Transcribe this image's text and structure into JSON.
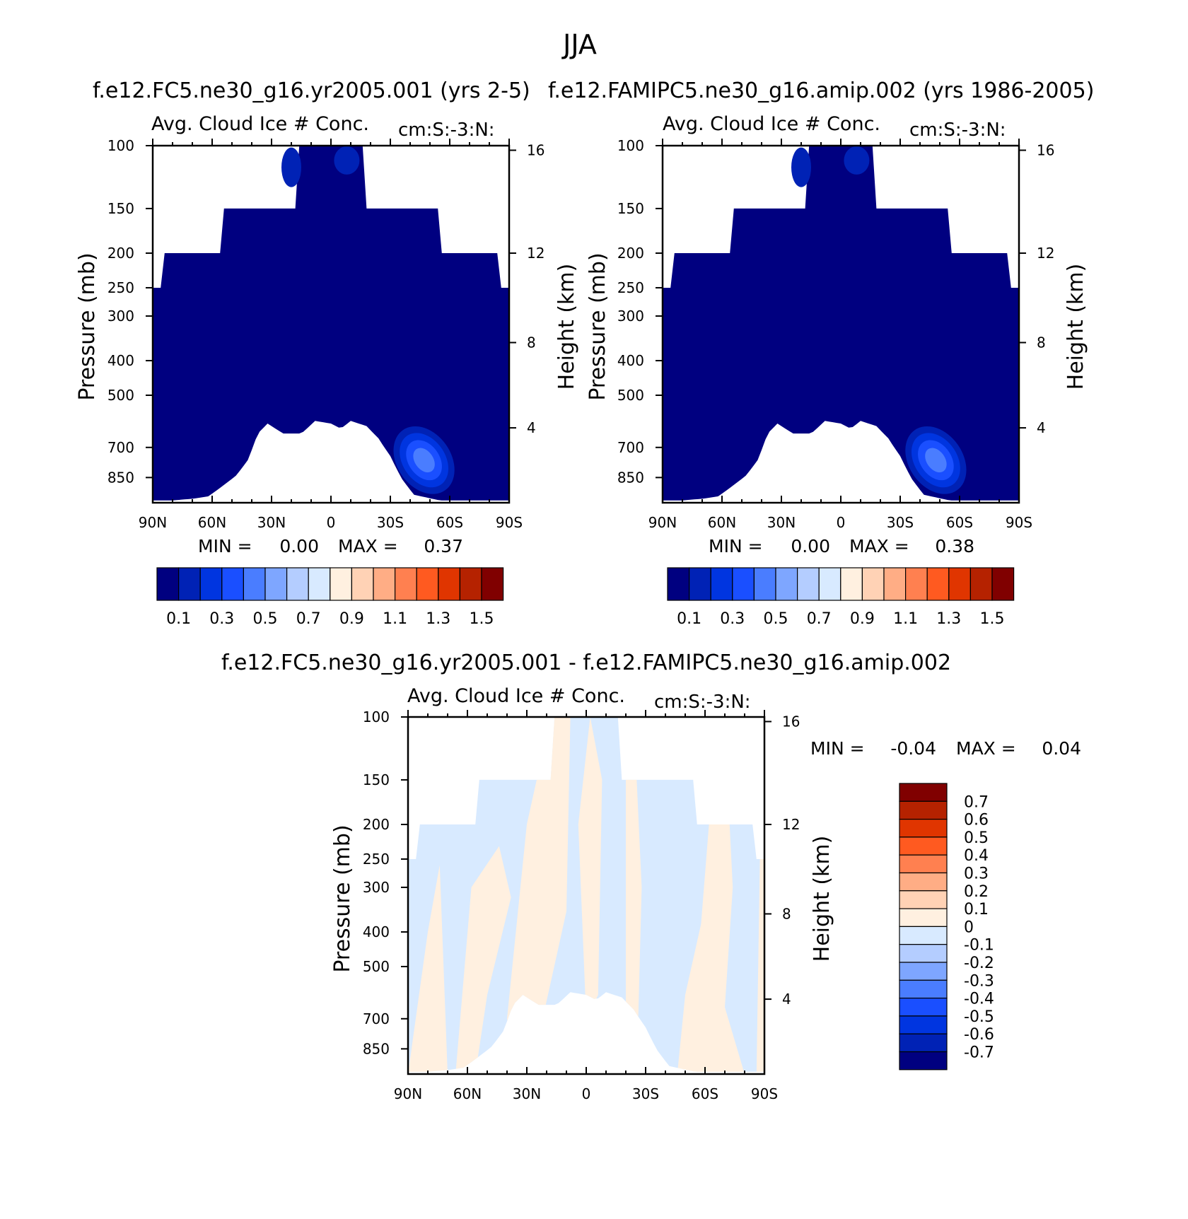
{
  "colors": {
    "ctrl_levels": [
      "#000080",
      "#0022b5",
      "#0035e0",
      "#1a4fff",
      "#4a7dff",
      "#7ea6ff",
      "#b4cdff",
      "#d8eaff",
      "#fff0e0",
      "#ffd2b5",
      "#ffad85",
      "#ff8050",
      "#ff5a20",
      "#e03500",
      "#b52200",
      "#800000"
    ],
    "diff_levels": [
      "#000080",
      "#0022b5",
      "#0035e0",
      "#1a4fff",
      "#4a7dff",
      "#7ea6ff",
      "#b4cdff",
      "#d8eaff",
      "#fff0e0",
      "#ffd2b5",
      "#ffad85",
      "#ff8050",
      "#ff5a20",
      "#e03500",
      "#b52200",
      "#800000"
    ]
  },
  "chart_data": [
    {
      "id": "panel_a",
      "type": "contour",
      "suptitle": "JJA",
      "case": "f.e12.FC5.ne30_g16.yr2005.001 (yrs 2-5)",
      "variable": "Avg. Cloud Ice # Conc.",
      "units": "cm:S:-3:N:",
      "ylabel": "Pressure (mb)",
      "y2label": "Height (km)",
      "x_ticks": [
        "90N",
        "60N",
        "30N",
        "0",
        "30S",
        "60S",
        "90S"
      ],
      "y_ticks": [
        "100",
        "150",
        "200",
        "250",
        "300",
        "400",
        "500",
        "700",
        "850"
      ],
      "y2_ticks": [
        "16",
        "12",
        "8",
        "4"
      ],
      "ylim_mb": [
        100,
        1000
      ],
      "stats": {
        "min_label": "MIN =",
        "min_value": "0.00",
        "max_label": "MAX =",
        "max_value": "0.37"
      },
      "colorbar_labels": [
        "0.1",
        "0.3",
        "0.5",
        "0.7",
        "0.9",
        "1.1",
        "1.3",
        "1.5"
      ],
      "blob": {
        "lat": -47,
        "p": 760,
        "peak": 0.37
      }
    },
    {
      "id": "panel_b",
      "type": "contour",
      "case": "f.e12.FAMIPC5.ne30_g16.amip.002 (yrs 1986-2005)",
      "variable": "Avg. Cloud Ice # Conc.",
      "units": "cm:S:-3:N:",
      "ylabel": "Pressure (mb)",
      "y2label": "Height (km)",
      "x_ticks": [
        "90N",
        "60N",
        "30N",
        "0",
        "30S",
        "60S",
        "90S"
      ],
      "y_ticks": [
        "100",
        "150",
        "200",
        "250",
        "300",
        "400",
        "500",
        "700",
        "850"
      ],
      "y2_ticks": [
        "16",
        "12",
        "8",
        "4"
      ],
      "ylim_mb": [
        100,
        1000
      ],
      "stats": {
        "min_label": "MIN =",
        "min_value": "0.00",
        "max_label": "MAX =",
        "max_value": "0.38"
      },
      "colorbar_labels": [
        "0.1",
        "0.3",
        "0.5",
        "0.7",
        "0.9",
        "1.1",
        "1.3",
        "1.5"
      ],
      "blob": {
        "lat": -48,
        "p": 760,
        "peak": 0.38
      }
    },
    {
      "id": "panel_c",
      "type": "contour",
      "case": "f.e12.FC5.ne30_g16.yr2005.001 - f.e12.FAMIPC5.ne30_g16.amip.002",
      "variable": "Avg. Cloud Ice # Conc.",
      "units": "cm:S:-3:N:",
      "ylabel": "Pressure (mb)",
      "y2label": "Height (km)",
      "x_ticks": [
        "90N",
        "60N",
        "30N",
        "0",
        "30S",
        "60S",
        "90S"
      ],
      "y_ticks": [
        "100",
        "150",
        "200",
        "250",
        "300",
        "400",
        "500",
        "700",
        "850"
      ],
      "y2_ticks": [
        "16",
        "12",
        "8",
        "4"
      ],
      "ylim_mb": [
        100,
        1000
      ],
      "stats": {
        "min_label": "MIN =",
        "min_value": "-0.04",
        "max_label": "MAX =",
        "max_value": "0.04"
      },
      "colorbar_labels": [
        "0.7",
        "0.6",
        "0.5",
        "0.4",
        "0.3",
        "0.2",
        "0.1",
        "0",
        "-0.1",
        "-0.2",
        "-0.3",
        "-0.4",
        "-0.5",
        "-0.6",
        "-0.7"
      ]
    }
  ]
}
